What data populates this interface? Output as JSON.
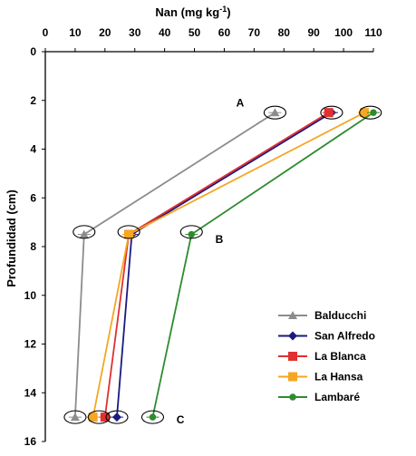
{
  "chart_data": {
    "type": "line",
    "xlabel": "Nan (mg kg",
    "xlabel_sup": "-1",
    "xlabel_close": ")",
    "ylabel": "Profundidad (cm)",
    "x_axis_position": "top",
    "y_axis_inverted": true,
    "xlim": [
      0,
      110
    ],
    "ylim": [
      0,
      16
    ],
    "xticks": [
      "0",
      "10",
      "20",
      "30",
      "40",
      "50",
      "60",
      "70",
      "80",
      "90",
      "100",
      "110"
    ],
    "yticks": [
      "0",
      "2",
      "4",
      "6",
      "8",
      "10",
      "12",
      "14",
      "16"
    ],
    "grid": false,
    "legend_position": "bottom-right",
    "series": [
      {
        "name": "Balducchi",
        "color": "#8c8c8c",
        "marker": "triangle",
        "x": [
          77,
          13,
          10
        ],
        "y": [
          2.5,
          7.5,
          15
        ]
      },
      {
        "name": "San Alfredo",
        "color": "#1a1a80",
        "marker": "diamond",
        "x": [
          96,
          29,
          24
        ],
        "y": [
          2.5,
          7.5,
          15
        ]
      },
      {
        "name": "La Blanca",
        "color": "#e03030",
        "marker": "square",
        "x": [
          95,
          28,
          20
        ],
        "y": [
          2.5,
          7.5,
          15
        ]
      },
      {
        "name": "La Hansa",
        "color": "#f5a623",
        "marker": "square",
        "x": [
          107,
          28,
          16
        ],
        "y": [
          2.5,
          7.5,
          15
        ]
      },
      {
        "name": "Lambaré",
        "color": "#2e8b2e",
        "marker": "circle",
        "x": [
          110,
          49,
          36
        ],
        "y": [
          2.5,
          7.5,
          15
        ]
      }
    ],
    "annotations": [
      {
        "text": "A",
        "x": 64,
        "y": 2.1
      },
      {
        "text": "B",
        "x": 57,
        "y": 7.7
      },
      {
        "text": "C",
        "x": 44,
        "y": 15.1
      }
    ],
    "ellipses": [
      {
        "x": 77,
        "y": 2.5
      },
      {
        "x": 96,
        "y": 2.5
      },
      {
        "x": 109,
        "y": 2.5
      },
      {
        "x": 13,
        "y": 7.4
      },
      {
        "x": 28,
        "y": 7.4
      },
      {
        "x": 49,
        "y": 7.4
      },
      {
        "x": 10,
        "y": 15
      },
      {
        "x": 18,
        "y": 15
      },
      {
        "x": 24,
        "y": 15
      },
      {
        "x": 36,
        "y": 15
      }
    ]
  }
}
